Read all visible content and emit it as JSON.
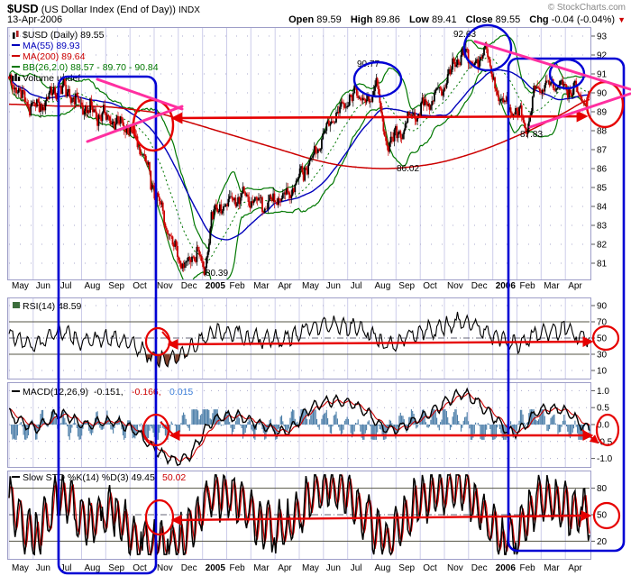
{
  "header": {
    "symbol": "$USD",
    "name": "(US Dollar Index (End of Day))",
    "exchange": "INDX",
    "date": "13-Apr-2006",
    "copyright": "© StockCharts.com",
    "quote": {
      "open_label": "Open",
      "open": "89.59",
      "high_label": "High",
      "high": "89.86",
      "low_label": "Low",
      "low": "89.41",
      "close_label": "Close",
      "close": "89.55",
      "chg_label": "Chg",
      "chg": "-0.04 (-0.04%)",
      "direction_icon": "▼"
    }
  },
  "colors": {
    "candle_up": "#000000",
    "candle_down": "#cc0000",
    "ma55": "#0000bb",
    "ma200": "#cc0000",
    "bollinger": "#007700",
    "macd_line": "#000000",
    "macd_signal": "#cc0000",
    "macd_hist": "#4a7da8",
    "rsi_line": "#000000",
    "rsi_fill_oversold": "#80422d",
    "sto_k": "#000000",
    "sto_d": "#cc0000",
    "annotation_red": "#e60000",
    "annotation_blue": "#0000d4",
    "annotation_pink": "#ff2fa0",
    "grid": "#ccccea",
    "panel_border": "#9e9ec8",
    "copyright": "#888888"
  },
  "months": [
    "May",
    "Jun",
    "Jul",
    "Aug",
    "Sep",
    "Oct",
    "Nov",
    "Dec",
    "2005",
    "Feb",
    "Mar",
    "Apr",
    "May",
    "Jun",
    "Jul",
    "Aug",
    "Sep",
    "Oct",
    "Nov",
    "Dec",
    "2006",
    "Feb",
    "Mar",
    "Apr"
  ],
  "axes": {
    "price": [
      "93",
      "92",
      "91",
      "90",
      "89",
      "88",
      "87",
      "86",
      "85",
      "84",
      "83",
      "82",
      "81"
    ],
    "rsi": [
      "90",
      "70",
      "50",
      "30",
      "10"
    ],
    "macd": [
      "1.0",
      "0.5",
      "0.0",
      "-0.5",
      "-1.0"
    ],
    "sto": [
      "80",
      "50",
      "20"
    ]
  },
  "legends": {
    "price": {
      "symbol": "$USD (Daily) 89.55",
      "ma55": "MA(55) 89.93",
      "ma200": "MA(200) 89.64",
      "bb": "BB(26,2.0) 88.57 - 89.70 - 90.84",
      "volume": "Volume undef"
    },
    "rsi": "RSI(14) 48.59",
    "macd": {
      "name": "MACD(12,26,9)",
      "v1": "-0.151,",
      "v2": "-0.166,",
      "v3": "0.015"
    },
    "sto": {
      "name": "Slow STO %K(14) %D(3) 49.45,",
      "v2": "50.02"
    }
  },
  "price_labels": [
    "92.63",
    "90.77",
    "87.83",
    "86.02",
    "80.39"
  ],
  "chart_data": [
    {
      "type": "candlestick",
      "title": "$USD US Dollar Index (End of Day) - Daily",
      "x_range": [
        "May 2004",
        "Apr 2006"
      ],
      "categories_monthly": [
        "May",
        "Jun",
        "Jul",
        "Aug",
        "Sep",
        "Oct",
        "Nov",
        "Dec",
        "2005",
        "Feb",
        "Mar",
        "Apr",
        "May",
        "Jun",
        "Jul",
        "Aug",
        "Sep",
        "Oct",
        "Nov",
        "Dec",
        "2006",
        "Feb",
        "Mar",
        "Apr"
      ],
      "close_monthly_approx": [
        90.6,
        89.2,
        90.2,
        89.2,
        88.6,
        87.6,
        83.9,
        81.0,
        83.4,
        84.4,
        84.2,
        84.6,
        86.6,
        89.0,
        89.8,
        87.5,
        88.8,
        90.0,
        91.9,
        90.7,
        89.0,
        90.2,
        90.4,
        89.55
      ],
      "ma200_monthly_approx": [
        89.4,
        89.35,
        89.3,
        89.3,
        89.25,
        89.1,
        88.9,
        88.5,
        88.1,
        87.7,
        87.3,
        86.9,
        86.5,
        86.2,
        86.05,
        86.0,
        86.1,
        86.3,
        86.65,
        87.1,
        87.65,
        88.25,
        88.95,
        89.64
      ],
      "key_points": [
        {
          "label": 92.63,
          "when": "Nov 2005 high"
        },
        {
          "label": 90.77,
          "when": "Jul 2005 high"
        },
        {
          "label": 87.83,
          "when": "Jan 2006 low"
        },
        {
          "label": 86.02,
          "when": "Aug 2005 MA(200) low"
        },
        {
          "label": 80.39,
          "when": "Dec 2004 low"
        }
      ],
      "forced_extremes": [
        {
          "t": 7.75,
          "value": 80.39
        },
        {
          "t": 14.55,
          "value": 90.77
        },
        {
          "t": 18.85,
          "value": 92.63
        },
        {
          "t": 20.5,
          "value": 87.83
        }
      ],
      "last_ohlc": {
        "open": 89.59,
        "high": 89.86,
        "low": 89.41,
        "close": 89.55,
        "chg_pct": -0.04
      },
      "overlays": [
        {
          "name": "MA(55)",
          "last": 89.93
        },
        {
          "name": "MA(200)",
          "last": 89.64
        },
        {
          "name": "BB(26,2.0)",
          "last_lower": 88.57,
          "last_mid": 89.7,
          "last_upper": 90.84
        }
      ],
      "volume": "undef",
      "ylim": [
        80,
        93.5
      ]
    },
    {
      "type": "line",
      "title": "RSI(14)",
      "last": 48.59,
      "levels": [
        70,
        50,
        30
      ],
      "ylim": [
        0,
        100
      ],
      "values_monthly_approx": [
        55,
        40,
        57,
        45,
        50,
        40,
        24,
        32,
        55,
        55,
        48,
        50,
        62,
        65,
        60,
        42,
        55,
        62,
        70,
        55,
        42,
        55,
        60,
        48.6
      ]
    },
    {
      "type": "line",
      "title": "MACD(12,26,9)",
      "last_macd": -0.151,
      "last_signal": -0.166,
      "last_hist": 0.015,
      "ylim": [
        -1.25,
        1.25
      ],
      "values_monthly_approx": [
        0.3,
        -0.1,
        0.3,
        0.0,
        0.1,
        -0.2,
        -0.85,
        -1.0,
        0.05,
        0.25,
        0.0,
        -0.2,
        0.5,
        0.7,
        0.45,
        -0.15,
        0.1,
        0.5,
        0.9,
        0.35,
        -0.25,
        0.4,
        0.4,
        -0.15
      ]
    },
    {
      "type": "line",
      "title": "Slow STO %K(14) %D(3)",
      "last_k": 49.45,
      "last_d": 50.02,
      "levels": [
        80,
        50,
        20
      ],
      "ylim": [
        0,
        100
      ],
      "values_monthly_approx": [
        65,
        25,
        72,
        42,
        55,
        22,
        15,
        28,
        70,
        68,
        40,
        38,
        72,
        80,
        50,
        20,
        60,
        75,
        80,
        42,
        25,
        70,
        58,
        49.5
      ]
    }
  ]
}
